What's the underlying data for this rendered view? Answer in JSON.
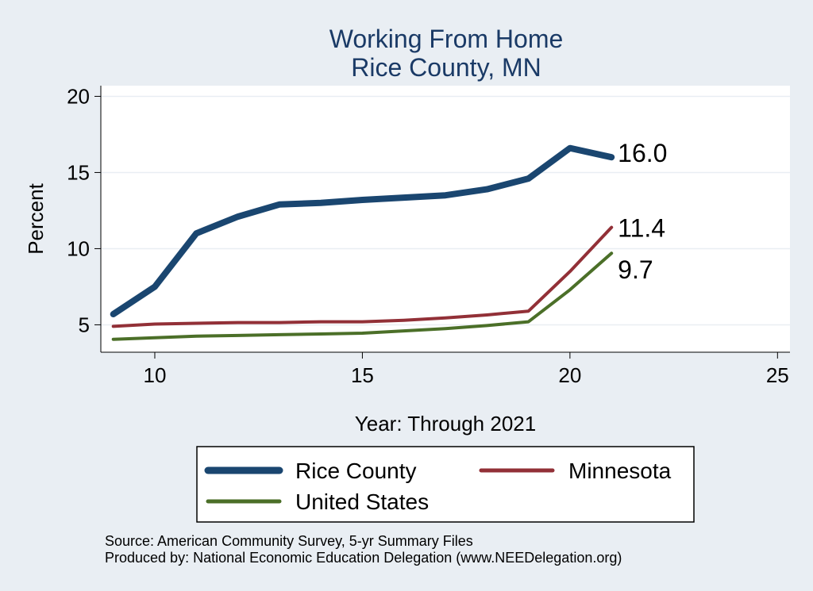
{
  "chart_data": {
    "type": "line",
    "title": [
      "Working From Home",
      "Rice County, MN"
    ],
    "xlabel": "Year: Through 2021",
    "ylabel": "Percent",
    "xlim": [
      8.7,
      25.3
    ],
    "ylim": [
      3.2,
      20.7
    ],
    "xticks": [
      10,
      15,
      20,
      25
    ],
    "yticks": [
      5,
      10,
      15,
      20
    ],
    "grid": true,
    "legend_position": "bottom",
    "series": [
      {
        "name": "Rice County",
        "color": "#1a4670",
        "x": [
          9,
          10,
          11,
          12,
          13,
          14,
          15,
          16,
          17,
          18,
          19,
          20,
          21
        ],
        "y": [
          5.7,
          7.5,
          11.0,
          12.1,
          12.9,
          13.0,
          13.2,
          13.35,
          13.5,
          13.9,
          14.6,
          16.6,
          16.0
        ],
        "end_label": "16.0"
      },
      {
        "name": "Minnesota",
        "color": "#923037",
        "x": [
          9,
          10,
          11,
          12,
          13,
          14,
          15,
          16,
          17,
          18,
          19,
          20,
          21
        ],
        "y": [
          4.9,
          5.05,
          5.1,
          5.15,
          5.15,
          5.2,
          5.2,
          5.3,
          5.45,
          5.65,
          5.9,
          8.5,
          11.4
        ],
        "end_label": "11.4"
      },
      {
        "name": "United States",
        "color": "#4b6f28",
        "x": [
          9,
          10,
          11,
          12,
          13,
          14,
          15,
          16,
          17,
          18,
          19,
          20,
          21
        ],
        "y": [
          4.05,
          4.15,
          4.25,
          4.3,
          4.35,
          4.4,
          4.45,
          4.6,
          4.75,
          4.95,
          5.2,
          7.3,
          9.7
        ],
        "end_label": "9.7"
      }
    ]
  },
  "footer": {
    "source": "Source: American Community Survey, 5-yr Summary Files",
    "produced": "Produced by: National Economic Education Delegation (www.NEEDelegation.org)"
  }
}
